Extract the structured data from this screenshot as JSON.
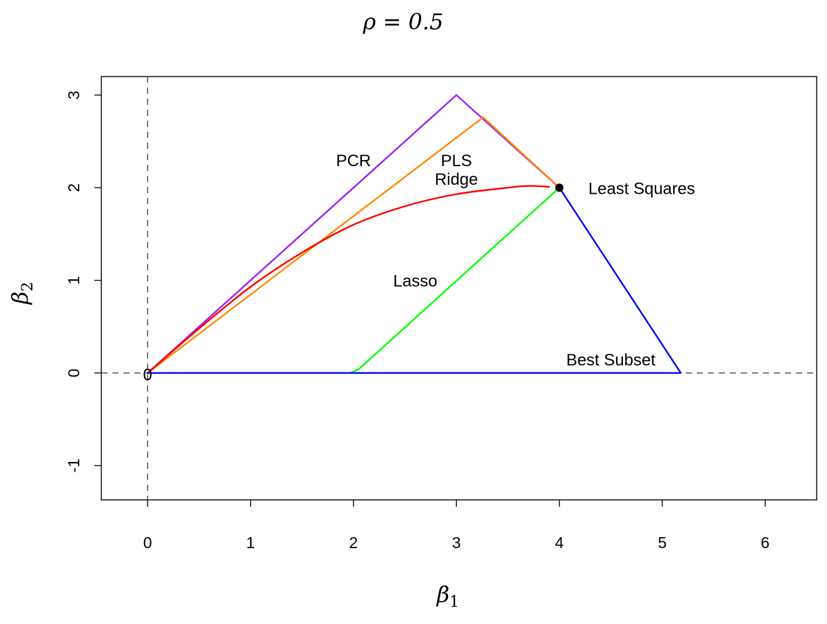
{
  "chart_data": {
    "type": "line",
    "title": "ρ = 0.5",
    "xlabel": "β1",
    "xlabel_parts": {
      "base": "β",
      "sub": "1"
    },
    "ylabel": "β2",
    "ylabel_parts": {
      "base": "β",
      "sub": "2"
    },
    "xlim": [
      -0.45,
      6.5
    ],
    "ylim": [
      -1.37,
      3.2
    ],
    "x_ticks": [
      0,
      1,
      2,
      3,
      4,
      5,
      6
    ],
    "y_ticks": [
      -1,
      0,
      1,
      2,
      3
    ],
    "x_tick_labels": [
      "0",
      "1",
      "2",
      "3",
      "4",
      "5",
      "6"
    ],
    "y_tick_labels": [
      "-1",
      "0",
      "1",
      "2",
      "3"
    ],
    "grid": false,
    "legend": "none",
    "reference_lines": [
      {
        "orientation": "vertical",
        "value": 0,
        "style": "dashed",
        "color": "#444444"
      },
      {
        "orientation": "horizontal",
        "value": 0,
        "style": "dashed",
        "color": "#444444"
      }
    ],
    "series": [
      {
        "name": "PCR",
        "color": "#a020f0",
        "points": [
          [
            0,
            0
          ],
          [
            3,
            3
          ],
          [
            4,
            2
          ]
        ]
      },
      {
        "name": "PLS",
        "color": "#ff8c00",
        "points": [
          [
            0,
            0
          ],
          [
            3.26,
            2.76
          ],
          [
            4,
            2
          ]
        ]
      },
      {
        "name": "Ridge",
        "color": "#ff0000",
        "points": [
          [
            0,
            0
          ],
          [
            0.5,
            0.48
          ],
          [
            1,
            0.93
          ],
          [
            1.5,
            1.3
          ],
          [
            2,
            1.6
          ],
          [
            2.5,
            1.8
          ],
          [
            3,
            1.93
          ],
          [
            3.5,
            2.0
          ],
          [
            3.7,
            2.02
          ],
          [
            3.9,
            2.01
          ]
        ]
      },
      {
        "name": "Lasso",
        "color": "#00ff00",
        "points": [
          [
            1.97,
            0
          ],
          [
            2.05,
            0.04
          ],
          [
            4,
            2
          ]
        ]
      },
      {
        "name": "Best Subset",
        "color": "#0000ff",
        "points": [
          [
            0,
            0
          ],
          [
            5.18,
            0
          ],
          [
            4,
            2
          ]
        ]
      }
    ],
    "special_points": [
      {
        "name": "Least Squares",
        "x": 4,
        "y": 2,
        "color": "#000000"
      }
    ],
    "annotations": [
      {
        "text": "PCR",
        "x": 2.0,
        "y": 2.28
      },
      {
        "text": "PLS",
        "x": 3.0,
        "y": 2.28
      },
      {
        "text": "Ridge",
        "x": 3.0,
        "y": 2.08
      },
      {
        "text": "Lasso",
        "x": 2.6,
        "y": 0.98
      },
      {
        "text": "Least Squares",
        "x": 4.8,
        "y": 1.98
      },
      {
        "text": "Best Subset",
        "x": 4.5,
        "y": 0.13
      },
      {
        "text": "0",
        "x": 0,
        "y": -0.03
      }
    ]
  }
}
